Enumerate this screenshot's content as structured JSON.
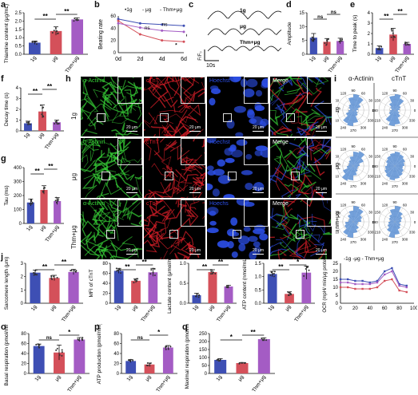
{
  "panel_letters": [
    "a",
    "b",
    "c",
    "d",
    "e",
    "f",
    "g",
    "h",
    "i",
    "j",
    "k",
    "l",
    "m",
    "n",
    "o",
    "p",
    "q"
  ],
  "groups": [
    "1g",
    "μg",
    "Thm+μg"
  ],
  "colors": {
    "g1": "#3e4fb4",
    "mug": "#d4505a",
    "thm": "#a45cc4",
    "alpha": "#37d337",
    "ctnt": "#e01f2a",
    "hoechst": "#2c4fe8",
    "polar": "#5b8fd4"
  },
  "sig": {
    "double": "**",
    "single": "*",
    "ns": "ns"
  },
  "stains": {
    "alpha": "α-Actinin",
    "ctnt": "cTnT",
    "hoechst": "Hoechst",
    "hoechst_typo": "Hoechs",
    "merge": "Merge"
  },
  "scale_bar": "20 μm",
  "polar": {
    "title_a": "α-Actinin",
    "title_c": "cTnT",
    "ticks": [
      "90",
      "120",
      "60",
      "150",
      "30",
      "180",
      "0",
      "210",
      "330",
      "240",
      "300",
      "270"
    ],
    "bins_alpha": [
      [
        0.3,
        0.5,
        0.9,
        1.0,
        0.8,
        0.4,
        0.3,
        0.2,
        0.3,
        0.5,
        0.9,
        1.0,
        0.8,
        0.4,
        0.3,
        0.2
      ],
      [
        0.4,
        0.7,
        1.0,
        0.9,
        0.6,
        0.4,
        0.3,
        0.3,
        0.4,
        0.7,
        1.0,
        0.9,
        0.6,
        0.4,
        0.3,
        0.3
      ],
      [
        0.5,
        0.6,
        0.9,
        1.0,
        0.7,
        0.5,
        0.3,
        0.3,
        0.5,
        0.6,
        0.9,
        1.0,
        0.7,
        0.5,
        0.3,
        0.3
      ]
    ],
    "bins_ctnt": [
      [
        0.3,
        0.4,
        0.8,
        1.0,
        0.9,
        0.5,
        0.3,
        0.2,
        0.3,
        0.4,
        0.8,
        1.0,
        0.9,
        0.5,
        0.3,
        0.2
      ],
      [
        0.6,
        0.7,
        0.8,
        0.9,
        0.8,
        0.7,
        0.6,
        0.5,
        0.6,
        0.7,
        0.8,
        0.9,
        0.8,
        0.7,
        0.6,
        0.5
      ],
      [
        0.4,
        0.5,
        0.7,
        1.0,
        0.8,
        0.5,
        0.4,
        0.3,
        0.4,
        0.5,
        0.7,
        1.0,
        0.8,
        0.5,
        0.4,
        0.3
      ]
    ]
  },
  "chart_data": [
    {
      "id": "a",
      "type": "bar",
      "ylabel": "Thiamine content (μg/mL)",
      "categories": [
        "1g",
        "μg",
        "Thm+μg"
      ],
      "values": [
        0.7,
        1.4,
        2.1
      ],
      "errors": [
        0.1,
        0.25,
        0.1
      ],
      "ylim": [
        0,
        2.5
      ],
      "yticks": [
        0,
        0.5,
        1.0,
        1.5,
        2.0,
        2.5
      ],
      "ytick_labels": [
        "0.0",
        "0.5",
        "1.0",
        "1.5",
        "2.0",
        "2.5"
      ],
      "sig": [
        {
          "a": 0,
          "b": 1,
          "t": "**"
        },
        {
          "a": 1,
          "b": 2,
          "t": "**"
        }
      ]
    },
    {
      "id": "b",
      "type": "line",
      "ylabel": "Beating rate",
      "categories": [
        "0d",
        "2d",
        "4d",
        "6d"
      ],
      "legend": [
        "1g",
        "μg",
        "Thm+μg"
      ],
      "series": [
        {
          "name": "1g",
          "values": [
            55,
            48,
            46,
            44
          ]
        },
        {
          "name": "μg",
          "values": [
            52,
            30,
            20,
            18
          ]
        },
        {
          "name": "Thm+μg",
          "values": [
            48,
            41,
            36,
            34
          ]
        }
      ],
      "ylim": [
        0,
        60
      ],
      "yticks": [
        0,
        20,
        40,
        60
      ],
      "annotations": [
        {
          "x": 1.2,
          "y": 38,
          "t": "ns"
        },
        {
          "x": 2.0,
          "y": 44,
          "t": "ns"
        },
        {
          "x": 2.6,
          "y": 10,
          "t": "*"
        },
        {
          "x": 3.2,
          "y": 10,
          "t": "**"
        },
        {
          "x": 3.1,
          "y": 26,
          "t": "#"
        },
        {
          "x": 3.3,
          "y": 42,
          "t": "#"
        }
      ]
    },
    {
      "id": "c",
      "type": "line",
      "ylabel": "F/F₀",
      "traces": [
        "1g",
        "μg",
        "Thm+μg"
      ],
      "time_label": "10s"
    },
    {
      "id": "d",
      "type": "bar",
      "ylabel": "Amplitude",
      "categories": [
        "1g",
        "μg",
        "Thm+μg"
      ],
      "values": [
        6.0,
        4.5,
        4.8
      ],
      "errors": [
        1.5,
        1.2,
        1.0
      ],
      "ylim": [
        0,
        15
      ],
      "yticks": [
        0,
        5,
        10,
        15
      ],
      "sig": [
        {
          "a": 0,
          "b": 1,
          "t": "ns"
        },
        {
          "a": 1,
          "b": 2,
          "t": "ns"
        }
      ]
    },
    {
      "id": "e",
      "type": "bar",
      "ylabel": "Time to peak (s)",
      "categories": [
        "1g",
        "μg",
        "Thm+μg"
      ],
      "values": [
        0.6,
        1.9,
        1.0
      ],
      "errors": [
        0.2,
        0.6,
        0.15
      ],
      "ylim": [
        0,
        4
      ],
      "yticks": [
        0,
        1,
        2,
        3,
        4
      ],
      "sig": [
        {
          "a": 0,
          "b": 1,
          "t": "**"
        },
        {
          "a": 1,
          "b": 2,
          "t": "**"
        }
      ]
    },
    {
      "id": "f",
      "type": "bar",
      "ylabel": "Decay time (s)",
      "categories": [
        "1g",
        "μg",
        "Thm+μg"
      ],
      "values": [
        0.7,
        1.8,
        0.8
      ],
      "errors": [
        0.2,
        0.6,
        0.2
      ],
      "ylim": [
        0,
        4
      ],
      "yticks": [
        0,
        1,
        2,
        3,
        4
      ],
      "sig": [
        {
          "a": 0,
          "b": 1,
          "t": "**"
        },
        {
          "a": 1,
          "b": 2,
          "t": "**"
        }
      ]
    },
    {
      "id": "g",
      "type": "bar",
      "ylabel": "Tau (ms)",
      "categories": [
        "1g",
        "μg",
        "Thm+μg"
      ],
      "values": [
        150,
        240,
        160
      ],
      "errors": [
        25,
        30,
        25
      ],
      "ylim": [
        0,
        400
      ],
      "yticks": [
        0,
        100,
        200,
        300,
        400
      ],
      "sig": [
        {
          "a": 0,
          "b": 1,
          "t": "**"
        },
        {
          "a": 1,
          "b": 2,
          "t": "**"
        }
      ]
    },
    {
      "id": "j",
      "type": "bar",
      "ylabel": "Sarcomere length (μm)",
      "categories": [
        "1g",
        "μg",
        "Thm+μg"
      ],
      "values": [
        2.3,
        1.9,
        2.35
      ],
      "errors": [
        0.2,
        0.2,
        0.2
      ],
      "ylim": [
        0,
        3
      ],
      "yticks": [
        0,
        1,
        2,
        3
      ],
      "sig": [
        {
          "a": 0,
          "b": 1,
          "t": "**"
        },
        {
          "a": 1,
          "b": 2,
          "t": "**"
        }
      ]
    },
    {
      "id": "k",
      "type": "bar",
      "ylabel": "MFI of cTnT",
      "categories": [
        "1g",
        "μg",
        "Thm+μg"
      ],
      "values": [
        65,
        45,
        62
      ],
      "errors": [
        5,
        4,
        8
      ],
      "ylim": [
        0,
        80
      ],
      "yticks": [
        0,
        20,
        40,
        60,
        80
      ],
      "sig": [
        {
          "a": 0,
          "b": 1,
          "t": "**"
        },
        {
          "a": 1,
          "b": 2,
          "t": "**"
        }
      ]
    },
    {
      "id": "l",
      "type": "bar",
      "ylabel": "Lactate content (μmol/mL)",
      "categories": [
        "1g",
        "μg",
        "Thm+μg"
      ],
      "values": [
        0.2,
        0.78,
        0.42
      ],
      "errors": [
        0.05,
        0.06,
        0.03
      ],
      "ylim": [
        0,
        1.0
      ],
      "yticks": [
        0,
        0.5,
        1.0
      ],
      "ytick_labels": [
        "0.0",
        "0.5",
        "1.0"
      ],
      "sig": [
        {
          "a": 0,
          "b": 1,
          "t": "**"
        },
        {
          "a": 1,
          "b": 2,
          "t": "**"
        }
      ]
    },
    {
      "id": "m",
      "type": "bar",
      "ylabel": "ATP content (nmol/mL)",
      "categories": [
        "1g",
        "μg",
        "Thm+μg"
      ],
      "values": [
        1.1,
        0.35,
        1.15
      ],
      "errors": [
        0.1,
        0.08,
        0.25
      ],
      "ylim": [
        0,
        1.5
      ],
      "yticks": [
        0,
        0.5,
        1.0,
        1.5
      ],
      "ytick_labels": [
        "0.0",
        "0.5",
        "1.0",
        "1.5"
      ],
      "sig": [
        {
          "a": 0,
          "b": 1,
          "t": "**"
        },
        {
          "a": 1,
          "b": 2,
          "t": "*"
        }
      ]
    },
    {
      "id": "n",
      "type": "line",
      "ylabel": "OCR (mpH/ min/μg protein)",
      "legend_text": "-1g -μg - Thm+μg",
      "x": [
        0,
        10,
        20,
        30,
        40,
        50,
        60,
        70,
        80,
        90
      ],
      "series": [
        {
          "name": "1g",
          "values": [
            15,
            15,
            14,
            14,
            13,
            14,
            20,
            22,
            12,
            11
          ]
        },
        {
          "name": "μg",
          "values": [
            10,
            10,
            9,
            9,
            9,
            10,
            14,
            15,
            8,
            7
          ]
        },
        {
          "name": "Thm+μg",
          "values": [
            13,
            13,
            12,
            12,
            12,
            13,
            18,
            20,
            11,
            10
          ]
        }
      ],
      "xlim": [
        0,
        100
      ],
      "xticks": [
        0,
        20,
        40,
        60,
        80,
        100
      ],
      "ylim": [
        0,
        25
      ],
      "yticks": [
        0,
        5,
        10,
        15,
        20,
        25
      ]
    },
    {
      "id": "o",
      "type": "bar",
      "ylabel": "Basal respiration (pmol/min)",
      "categories": [
        "1g",
        "μg",
        "Thm+μg"
      ],
      "values": [
        55,
        42,
        68
      ],
      "errors": [
        4,
        15,
        4
      ],
      "ylim": [
        0,
        80
      ],
      "yticks": [
        0,
        20,
        40,
        60,
        80
      ],
      "sig": [
        {
          "a": 0,
          "b": 1,
          "t": "ns"
        },
        {
          "a": 1,
          "b": 2,
          "t": "*"
        }
      ]
    },
    {
      "id": "p",
      "type": "bar",
      "ylabel": "ATP production (pmol/min)",
      "categories": [
        "1g",
        "μg",
        "Thm+μg"
      ],
      "values": [
        25,
        18,
        52
      ],
      "errors": [
        3,
        3,
        4
      ],
      "ylim": [
        0,
        80
      ],
      "yticks": [
        0,
        20,
        40,
        60,
        80
      ],
      "sig": [
        {
          "a": 0,
          "b": 1,
          "t": "ns"
        },
        {
          "a": 1,
          "b": 2,
          "t": "*"
        }
      ]
    },
    {
      "id": "q",
      "type": "bar",
      "ylabel": "Maximal respiration (pmol/min)",
      "categories": [
        "1g",
        "μg",
        "Thm+μg"
      ],
      "values": [
        85,
        65,
        215
      ],
      "errors": [
        8,
        4,
        8
      ],
      "ylim": [
        0,
        250
      ],
      "yticks": [
        0,
        50,
        100,
        150,
        200,
        250
      ],
      "sig": [
        {
          "a": 0,
          "b": 1,
          "t": "*"
        },
        {
          "a": 1,
          "b": 2,
          "t": "**"
        }
      ]
    }
  ]
}
